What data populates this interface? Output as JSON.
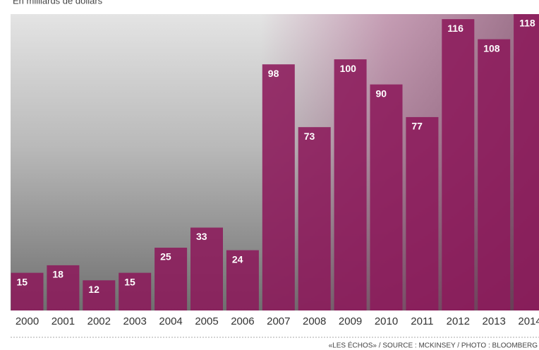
{
  "chart_data": {
    "type": "bar",
    "subtitle": "En milliards de dollars",
    "categories": [
      "2000",
      "2001",
      "2002",
      "2003",
      "2004",
      "2005",
      "2006",
      "2007",
      "2008",
      "2009",
      "2010",
      "2011",
      "2012",
      "2013",
      "2014"
    ],
    "values": [
      15,
      18,
      12,
      15,
      25,
      33,
      24,
      98,
      73,
      100,
      90,
      77,
      116,
      108,
      118
    ],
    "color": "#8c1a5b",
    "ylim": [
      0,
      118
    ],
    "source": "«LES ÉCHOS» / SOURCE : MCKINSEY / PHOTO : BLOOMBERG"
  }
}
